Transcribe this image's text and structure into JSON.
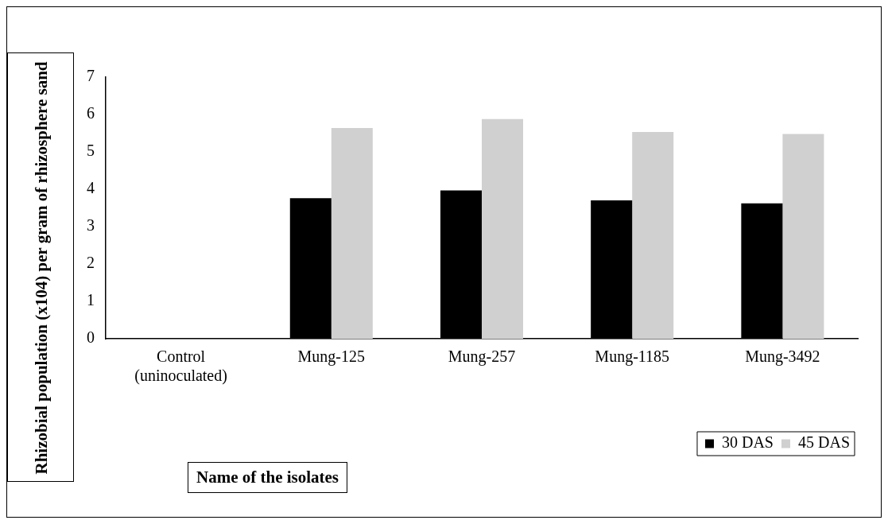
{
  "chart_data": {
    "type": "bar",
    "categories": [
      "Control (uninoculated)",
      "Mung-125",
      "Mung-257",
      "Mung-1185",
      "Mung-3492"
    ],
    "series": [
      {
        "name": "30 DAS",
        "color": "#000000",
        "values": [
          0,
          3.76,
          3.97,
          3.7,
          3.62
        ]
      },
      {
        "name": "45 DAS",
        "color": "#d0d0d0",
        "values": [
          0,
          5.64,
          5.88,
          5.53,
          5.48
        ]
      }
    ],
    "xlabel": "Name of the isolates",
    "ylabel": "Rhizobial population (x104) per gram of rhizosphere sand",
    "ylim": [
      0,
      7
    ],
    "yticks": [
      0,
      1,
      2,
      3,
      4,
      5,
      6,
      7
    ],
    "grid": false,
    "legend": "bottom right"
  }
}
